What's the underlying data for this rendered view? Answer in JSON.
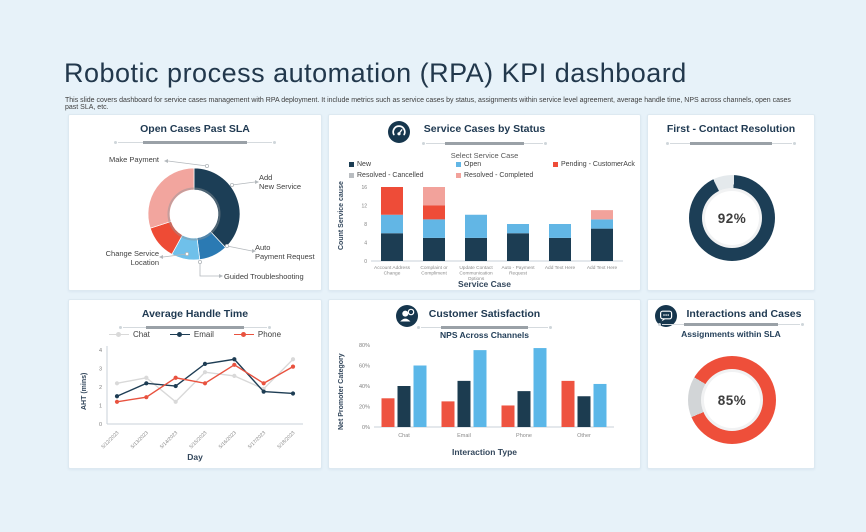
{
  "header": {
    "title": "Robotic process automation (RPA) KPI dashboard",
    "subtitle": "This slide covers dashboard for service cases management with RPA deployment.  It include metrics such as service cases by status, assignments within service level agreement, average handle time, NPS  across channels, open cases past SLA, etc."
  },
  "cards": {
    "open_cases": {
      "title": "Open Cases Past SLA"
    },
    "service_cases": {
      "title": "Service Cases by Status",
      "subtitle": "Select Service Case",
      "icon": "gauge-icon"
    },
    "fcr": {
      "title": "First - Contact Resolution"
    },
    "aht": {
      "title": "Average Handle Time"
    },
    "csat": {
      "title": "Customer Satisfaction",
      "subtitle": "NPS Across Channels",
      "icon": "customer-icon"
    },
    "interactions": {
      "title": "Interactions and Cases",
      "subtitle": "Assignments within SLA",
      "icon": "chat-icon"
    }
  },
  "chart_data": [
    {
      "id": "open_cases_past_sla",
      "type": "pie",
      "title": "Open Cases Past SLA",
      "slices": [
        {
          "label": "Add\nNew Service",
          "value": 38,
          "color": "#1c3e56"
        },
        {
          "label": "Auto\nPayment Request",
          "value": 10,
          "color": "#2b7ab3"
        },
        {
          "label": "Guided Troubleshooting",
          "value": 10,
          "color": "#6fc0ea"
        },
        {
          "label": "Change Service\nLocation",
          "value": 12,
          "color": "#ee4b35"
        },
        {
          "label": "Make Payment",
          "value": 30,
          "color": "#f2a59e"
        }
      ]
    },
    {
      "id": "service_cases_by_status",
      "type": "bar",
      "stacked": true,
      "title": "Service Cases by Status",
      "xlabel": "Service Case",
      "ylabel": "Count Service cause",
      "ylim": [
        0,
        16
      ],
      "yticks": [
        0,
        4,
        8,
        12,
        16
      ],
      "categories": [
        "Account Address\nChange",
        "Complaint or\nCompliment",
        "Update Contact\nCommunication\nOptions",
        "Auto - Payment\nRequest",
        "Add Text Here",
        "Add Text Here"
      ],
      "series": [
        {
          "name": "New",
          "color": "#1c3d53",
          "values": [
            6,
            5,
            5,
            6,
            5,
            7
          ]
        },
        {
          "name": "Open",
          "color": "#62b6e5",
          "values": [
            4,
            4,
            5,
            2,
            3,
            2
          ]
        },
        {
          "name": "Pending - CustomerAck",
          "color": "#ee4c38",
          "values": [
            6,
            3,
            0,
            0,
            0,
            0
          ]
        },
        {
          "name": "Resolved - Cancelled",
          "color": "#b9bdc1",
          "values": [
            0,
            0,
            0,
            0,
            0,
            0
          ]
        },
        {
          "name": "Resolved -  Completed",
          "color": "#f2a29b",
          "values": [
            0,
            4,
            0,
            0,
            0,
            2
          ]
        }
      ]
    },
    {
      "id": "first_contact_resolution",
      "type": "gauge",
      "title": "First - Contact Resolution",
      "value": 92,
      "label": "92%",
      "color": "#1c3e56",
      "track": "#e4e9ec"
    },
    {
      "id": "average_handle_time",
      "type": "line",
      "title": "Average Handle Time",
      "xlabel": "Day",
      "ylabel": "AHT (mins)",
      "ylim": [
        0,
        4
      ],
      "yticks": [
        0,
        1,
        2,
        3,
        4
      ],
      "x": [
        "5/12/2023",
        "5/13/2023",
        "5/14/2023",
        "5/15/2023",
        "5/16/2023",
        "5/17/2023",
        "5/18/2023"
      ],
      "series": [
        {
          "name": "Chat",
          "color": "#d9d9d9",
          "values": [
            2.2,
            2.5,
            1.2,
            2.8,
            2.6,
            1.9,
            3.5
          ]
        },
        {
          "name": "Email",
          "color": "#1e3d54",
          "values": [
            1.5,
            2.2,
            2.05,
            3.25,
            3.5,
            1.75,
            1.65
          ]
        },
        {
          "name": "Phone",
          "color": "#e8523f",
          "values": [
            1.2,
            1.45,
            2.5,
            2.2,
            3.2,
            2.2,
            3.1
          ]
        }
      ]
    },
    {
      "id": "nps_across_channels",
      "type": "bar",
      "grouped": true,
      "title": "NPS Across Channels",
      "xlabel": "Interaction Type",
      "ylabel": "Net Promoter Category",
      "ylim": [
        0,
        80
      ],
      "yticks": [
        "0%",
        "20%",
        "40%",
        "60%",
        "80%"
      ],
      "categories": [
        "Chat",
        "Email",
        "Phone",
        "Other"
      ],
      "series": [
        {
          "color": "#ee5340",
          "values": [
            28,
            25,
            21,
            45
          ]
        },
        {
          "color": "#1c3c50",
          "values": [
            40,
            45,
            35,
            30
          ]
        },
        {
          "color": "#5bb7e8",
          "values": [
            60,
            75,
            77,
            42
          ]
        }
      ]
    },
    {
      "id": "assignments_within_sla",
      "type": "gauge",
      "title": "Assignments within SLA",
      "value": 85,
      "label": "85%",
      "color": "#ee4f3a",
      "track": "#d2d5d7"
    }
  ]
}
